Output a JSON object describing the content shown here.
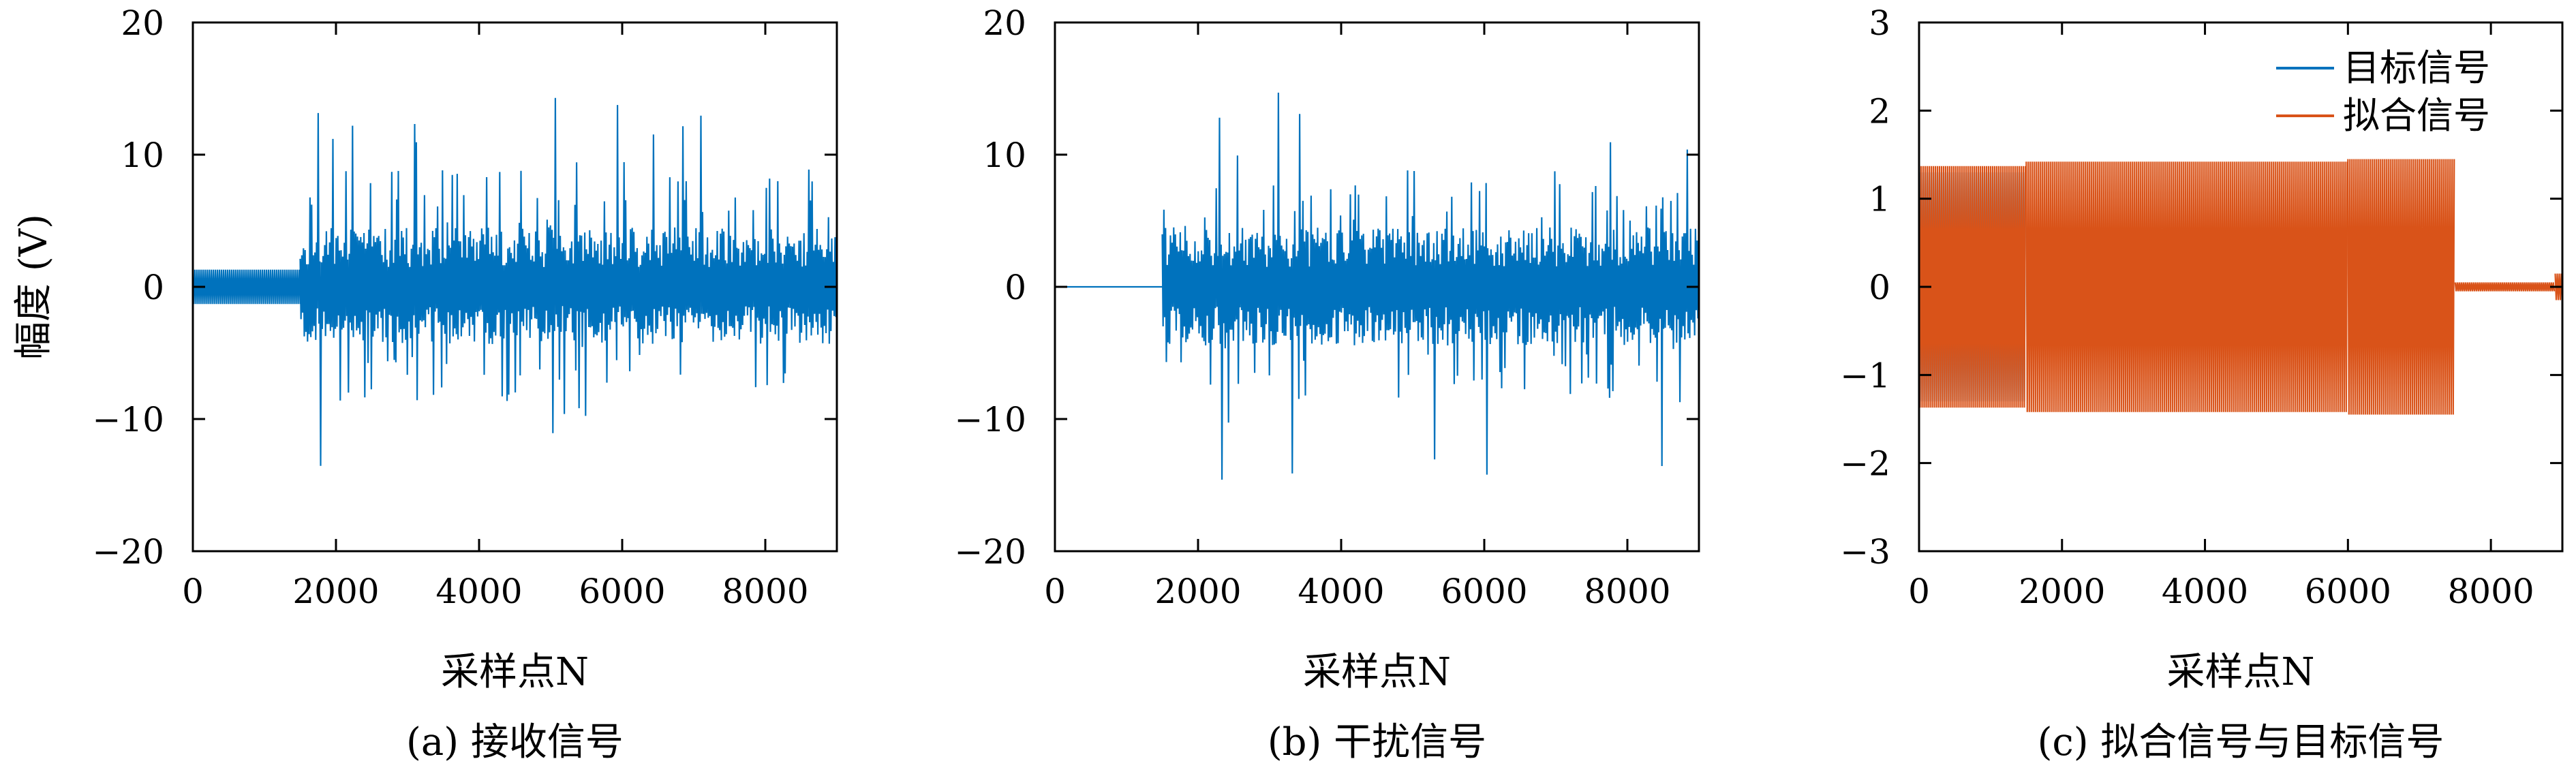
{
  "chart_data": [
    {
      "id": "a",
      "type": "line",
      "caption": "(a) 接收信号",
      "xlabel": "采样点N",
      "ylabel": "幅度 (V)",
      "xlim": [
        0,
        9000
      ],
      "ylim": [
        -20,
        20
      ],
      "xticks": [
        0,
        2000,
        4000,
        6000,
        8000
      ],
      "yticks": [
        20,
        10,
        0,
        -10,
        -20
      ],
      "xtick_labels": [
        "0",
        "2000",
        "4000",
        "6000",
        "8000"
      ],
      "ytick_labels": [
        "20",
        "10",
        "0",
        "−10",
        "−20"
      ],
      "grid": false,
      "series": [
        {
          "color": "#0072BD",
          "segments": [
            {
              "x_start": 0,
              "x_end": 1500,
              "amplitude": 1.3
            },
            {
              "x_start": 1500,
              "x_end": 9000,
              "amplitude_peak": 14.3,
              "amplitude_min_peak": -13.8
            }
          ]
        }
      ]
    },
    {
      "id": "b",
      "type": "line",
      "caption": "(b) 干扰信号",
      "xlabel": "采样点N",
      "ylabel": "",
      "xlim": [
        0,
        9000
      ],
      "ylim": [
        -20,
        20
      ],
      "xticks": [
        0,
        2000,
        4000,
        6000,
        8000
      ],
      "yticks": [
        20,
        10,
        0,
        -10,
        -20
      ],
      "xtick_labels": [
        "0",
        "2000",
        "4000",
        "6000",
        "8000"
      ],
      "ytick_labels": [
        "20",
        "10",
        "0",
        "−10",
        "−20"
      ],
      "grid": false,
      "series": [
        {
          "color": "#0072BD",
          "segments": [
            {
              "x_start": 0,
              "x_end": 1500,
              "amplitude": 0
            },
            {
              "x_start": 1500,
              "x_end": 9000,
              "amplitude_peak": 14.8,
              "amplitude_min_peak": -14.6
            }
          ]
        }
      ]
    },
    {
      "id": "c",
      "type": "line",
      "caption": "(c) 拟合信号与目标信号",
      "xlabel": "采样点N",
      "ylabel": "",
      "xlim": [
        0,
        9000
      ],
      "ylim": [
        -3,
        3
      ],
      "xticks": [
        0,
        2000,
        4000,
        6000,
        8000
      ],
      "yticks": [
        3,
        2,
        1,
        0,
        -1,
        -2,
        -3
      ],
      "xtick_labels": [
        "0",
        "2000",
        "4000",
        "6000",
        "8000"
      ],
      "ytick_labels": [
        "3",
        "2",
        "1",
        "0",
        "−1",
        "−2",
        "−3"
      ],
      "grid": false,
      "legend": "top-right",
      "series": [
        {
          "name": "目标信号",
          "color": "#0072BD",
          "segments": [
            {
              "x_start": 0,
              "x_end": 1500,
              "amplitude": 1.3
            }
          ]
        },
        {
          "name": "拟合信号",
          "color": "#D95319",
          "segments": [
            {
              "x_start": 0,
              "x_end": 1500,
              "amplitude": 1.37
            },
            {
              "x_start": 1500,
              "x_end": 6000,
              "amplitude": 1.42
            },
            {
              "x_start": 6000,
              "x_end": 7500,
              "amplitude": 1.45
            },
            {
              "x_start": 7500,
              "x_end": 8900,
              "amplitude": 0.05
            },
            {
              "x_start": 8900,
              "x_end": 9000,
              "amplitude": 0.15
            }
          ]
        }
      ]
    }
  ]
}
